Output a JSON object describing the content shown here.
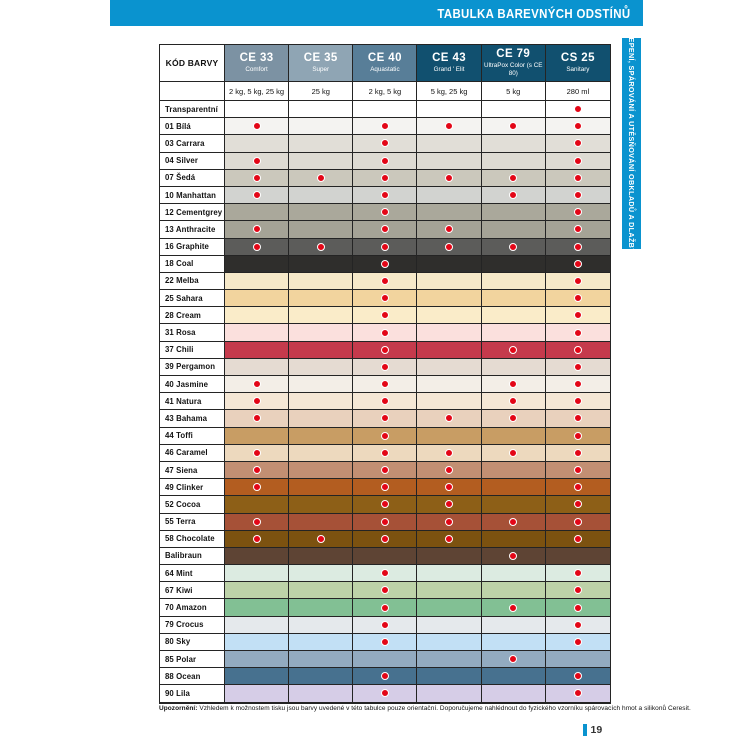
{
  "page": {
    "header_title": "TABULKA BAREVNÝCH ODSTÍNŮ",
    "side_tab": "LEPENÍ, SPÁROVÁNÍ A UTĚSŇOVÁNÍ OBKLADŮ A DLAŽBY",
    "footnote_label": "Upozornění:",
    "footnote_text": " Vzhledem k možnostem tisku jsou barvy uvedené v této tabulce pouze orientační. Doporučujeme nahlédnout do fyzického vzorníku spárovacích hmot a silikonů Ceresit.",
    "page_number": "19",
    "accent_color": "#0a93cf",
    "dot_color": "#e30617"
  },
  "table": {
    "corner_label": "KÓD BARVY",
    "columns": [
      {
        "code": "CE 33",
        "subtitle": "Comfort",
        "bg": "#7c92a3",
        "package": "2 kg, 5 kg, 25 kg"
      },
      {
        "code": "CE 35",
        "subtitle": "Super",
        "bg": "#8fa5b4",
        "package": "25 kg"
      },
      {
        "code": "CE 40",
        "subtitle": "Aquastatic",
        "bg": "#587e98",
        "package": "2 kg, 5 kg"
      },
      {
        "code": "CE 43",
        "subtitle": "Grand ' Elit",
        "bg": "#11506f",
        "package": "5 kg, 25 kg"
      },
      {
        "code": "CE 79",
        "subtitle": "UltraPox Color (s CE 80)",
        "bg": "#11506f",
        "package": "5 kg"
      },
      {
        "code": "CS 25",
        "subtitle": "Sanitary",
        "bg": "#11506f",
        "package": "280 ml"
      }
    ],
    "rows": [
      {
        "label": "Transparentní",
        "color": "#ffffff",
        "dots": [
          false,
          false,
          false,
          false,
          false,
          true
        ]
      },
      {
        "label": "01 Bílá",
        "color": "#f4f3f1",
        "dots": [
          true,
          false,
          true,
          true,
          true,
          true
        ]
      },
      {
        "label": "03 Carrara",
        "color": "#e1ded7",
        "dots": [
          false,
          false,
          true,
          false,
          false,
          true
        ]
      },
      {
        "label": "04 Silver",
        "color": "#dedbd3",
        "dots": [
          true,
          false,
          true,
          false,
          false,
          true
        ]
      },
      {
        "label": "07 Šedá",
        "color": "#cbc8bc",
        "dots": [
          true,
          true,
          true,
          true,
          true,
          true
        ]
      },
      {
        "label": "10 Manhattan",
        "color": "#d2d3d0",
        "dots": [
          true,
          false,
          true,
          false,
          true,
          true
        ]
      },
      {
        "label": "12 Cementgrey",
        "color": "#aaa89b",
        "dots": [
          false,
          false,
          true,
          false,
          false,
          true
        ]
      },
      {
        "label": "13 Anthracite",
        "color": "#a5a396",
        "dots": [
          true,
          false,
          true,
          true,
          false,
          true
        ]
      },
      {
        "label": "16 Graphite",
        "color": "#5c5c5a",
        "dots": [
          true,
          true,
          true,
          true,
          true,
          true
        ]
      },
      {
        "label": "18 Coal",
        "color": "#2f2e2c",
        "dots": [
          false,
          false,
          true,
          false,
          false,
          true
        ]
      },
      {
        "label": "22 Melba",
        "color": "#f6e9c9",
        "dots": [
          false,
          false,
          true,
          false,
          false,
          true
        ]
      },
      {
        "label": "25 Sahara",
        "color": "#f2d49e",
        "dots": [
          false,
          false,
          true,
          false,
          false,
          true
        ]
      },
      {
        "label": "28 Cream",
        "color": "#faecc9",
        "dots": [
          false,
          false,
          true,
          false,
          false,
          true
        ]
      },
      {
        "label": "31 Rosa",
        "color": "#fbe0dd",
        "dots": [
          false,
          false,
          true,
          false,
          false,
          true
        ]
      },
      {
        "label": "37 Chili",
        "color": "#c53a4c",
        "dots": [
          false,
          false,
          true,
          false,
          true,
          true
        ]
      },
      {
        "label": "39 Pergamon",
        "color": "#e5dbd2",
        "dots": [
          false,
          false,
          true,
          false,
          false,
          true
        ]
      },
      {
        "label": "40 Jasmine",
        "color": "#f3eee7",
        "dots": [
          true,
          false,
          true,
          false,
          true,
          true
        ]
      },
      {
        "label": "41 Natura",
        "color": "#f5e7d5",
        "dots": [
          true,
          false,
          true,
          false,
          true,
          true
        ]
      },
      {
        "label": "43 Bahama",
        "color": "#e9d1bd",
        "dots": [
          true,
          false,
          true,
          true,
          true,
          true
        ]
      },
      {
        "label": "44 Toffi",
        "color": "#c89d64",
        "dots": [
          false,
          false,
          true,
          false,
          false,
          true
        ]
      },
      {
        "label": "46 Caramel",
        "color": "#edd9be",
        "dots": [
          true,
          false,
          true,
          true,
          true,
          true
        ]
      },
      {
        "label": "47 Siena",
        "color": "#c28f73",
        "dots": [
          true,
          false,
          true,
          true,
          false,
          true
        ]
      },
      {
        "label": "49 Clinker",
        "color": "#b35d20",
        "dots": [
          true,
          false,
          true,
          true,
          false,
          true
        ]
      },
      {
        "label": "52 Cocoa",
        "color": "#8d5f17",
        "dots": [
          false,
          false,
          true,
          true,
          false,
          true
        ]
      },
      {
        "label": "55 Terra",
        "color": "#a65137",
        "dots": [
          true,
          false,
          true,
          true,
          true,
          true
        ]
      },
      {
        "label": "58 Chocolate",
        "color": "#7c5210",
        "dots": [
          true,
          true,
          true,
          true,
          false,
          true
        ]
      },
      {
        "label": "Balibraun",
        "color": "#5e4434",
        "dots": [
          false,
          false,
          false,
          false,
          true,
          false
        ]
      },
      {
        "label": "64 Mint",
        "color": "#dcebe1",
        "dots": [
          false,
          false,
          true,
          false,
          false,
          true
        ]
      },
      {
        "label": "67 Kiwi",
        "color": "#bdd2a8",
        "dots": [
          false,
          false,
          true,
          false,
          false,
          true
        ]
      },
      {
        "label": "70 Amazon",
        "color": "#82c094",
        "dots": [
          false,
          false,
          true,
          false,
          true,
          true
        ]
      },
      {
        "label": "79 Crocus",
        "color": "#e5e9ec",
        "dots": [
          false,
          false,
          true,
          false,
          false,
          true
        ]
      },
      {
        "label": "80 Sky",
        "color": "#c2e0f5",
        "dots": [
          false,
          false,
          true,
          false,
          false,
          true
        ]
      },
      {
        "label": "85 Polar",
        "color": "#93abc0",
        "dots": [
          false,
          false,
          false,
          false,
          true,
          false
        ]
      },
      {
        "label": "88 Ocean",
        "color": "#47718f",
        "dots": [
          false,
          false,
          true,
          false,
          false,
          true
        ]
      },
      {
        "label": "90 Lila",
        "color": "#d6cde7",
        "dots": [
          false,
          false,
          true,
          false,
          false,
          true
        ]
      }
    ]
  }
}
